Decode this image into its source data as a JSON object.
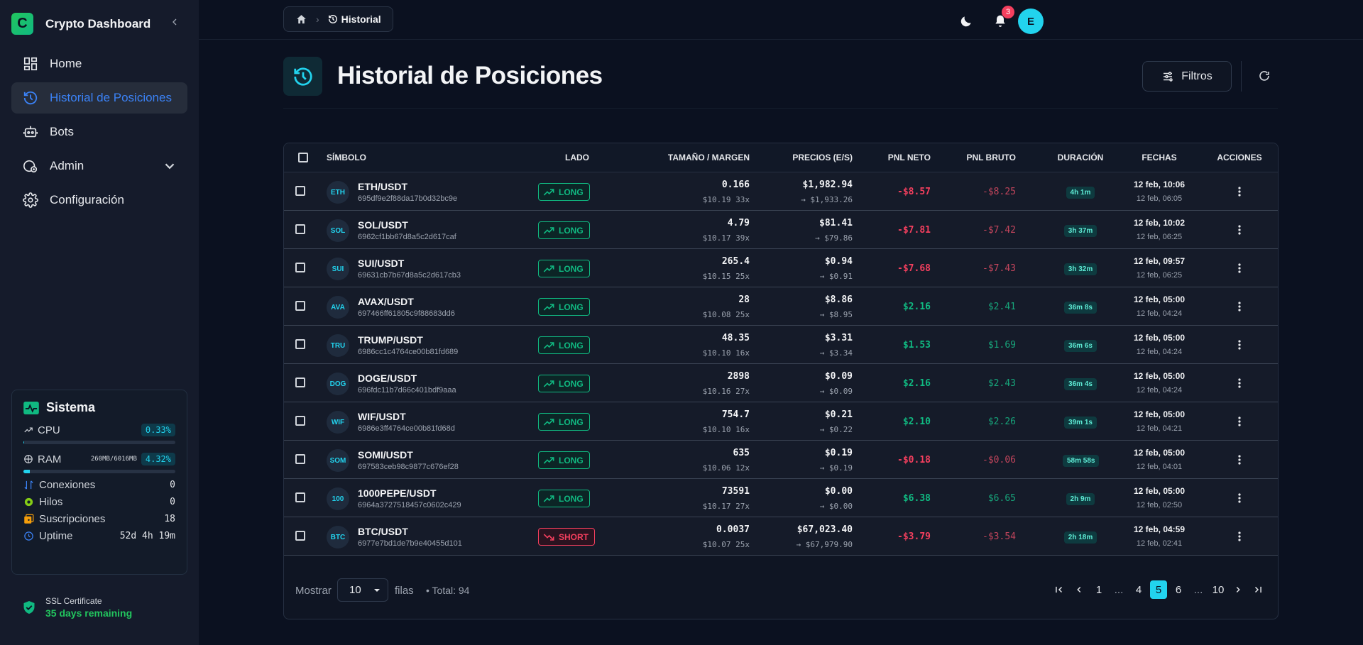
{
  "app": {
    "title": "Crypto Dashboard",
    "logo_letter": "C"
  },
  "sidebar": {
    "items": [
      {
        "label": "Home",
        "icon": "grid-icon"
      },
      {
        "label": "Historial de Posiciones",
        "icon": "history-icon",
        "active": true
      },
      {
        "label": "Bots",
        "icon": "robot-icon"
      },
      {
        "label": "Admin",
        "icon": "admin-icon",
        "expandable": true
      },
      {
        "label": "Configuración",
        "icon": "gear-icon"
      }
    ]
  },
  "system": {
    "title": "Sistema",
    "cpu": {
      "label": "CPU",
      "value": "0.33%",
      "fraction": 0.0033
    },
    "ram": {
      "label": "RAM",
      "detail": "260MB/6016MB",
      "value": "4.32%",
      "fraction": 0.0432
    },
    "stats": [
      {
        "label": "Conexiones",
        "value": "0"
      },
      {
        "label": "Hilos",
        "value": "0"
      },
      {
        "label": "Suscripciones",
        "value": "18"
      },
      {
        "label": "Uptime",
        "value": "52d 4h 19m"
      }
    ]
  },
  "ssl": {
    "title": "SSL Certificate",
    "status": "35 days remaining"
  },
  "breadcrumb": {
    "current": "Historial"
  },
  "notifications": {
    "count": "3"
  },
  "user": {
    "initial": "E"
  },
  "page": {
    "title": "Historial de Posiciones",
    "filters_label": "Filtros"
  },
  "table": {
    "headers": {
      "symbol": "SÍMBOLO",
      "side": "LADO",
      "size": "TAMAÑO / MARGEN",
      "prices": "PRECIOS (E/S)",
      "pnl_net": "PNL NETO",
      "pnl_gross": "PNL BRUTO",
      "duration": "DURACIÓN",
      "dates": "FECHAS",
      "actions": "ACCIONES"
    },
    "rows": [
      {
        "badge": "ETH",
        "symbol": "ETH/USDT",
        "id": "695df9e2f88da17b0d32bc9e",
        "side": "LONG",
        "size": "0.166",
        "margin": "$10.19 33x",
        "entry": "$1,982.94",
        "exit": "→ $1,933.26",
        "pnl_net": "-$8.57",
        "pnl_gross": "-$8.25",
        "duration": "4h 1m",
        "date_close": "12 feb, 10:06",
        "date_open": "12 feb, 06:05"
      },
      {
        "badge": "SOL",
        "symbol": "SOL/USDT",
        "id": "6962cf1bb67d8a5c2d617caf",
        "side": "LONG",
        "size": "4.79",
        "margin": "$10.17 39x",
        "entry": "$81.41",
        "exit": "→ $79.86",
        "pnl_net": "-$7.81",
        "pnl_gross": "-$7.42",
        "duration": "3h 37m",
        "date_close": "12 feb, 10:02",
        "date_open": "12 feb, 06:25"
      },
      {
        "badge": "SUI",
        "symbol": "SUI/USDT",
        "id": "69631cb7b67d8a5c2d617cb3",
        "side": "LONG",
        "size": "265.4",
        "margin": "$10.15 25x",
        "entry": "$0.94",
        "exit": "→ $0.91",
        "pnl_net": "-$7.68",
        "pnl_gross": "-$7.43",
        "duration": "3h 32m",
        "date_close": "12 feb, 09:57",
        "date_open": "12 feb, 06:25"
      },
      {
        "badge": "AVA",
        "symbol": "AVAX/USDT",
        "id": "697466ff61805c9f88683dd6",
        "side": "LONG",
        "size": "28",
        "margin": "$10.08 25x",
        "entry": "$8.86",
        "exit": "→ $8.95",
        "pnl_net": "$2.16",
        "pnl_gross": "$2.41",
        "duration": "36m 8s",
        "date_close": "12 feb, 05:00",
        "date_open": "12 feb, 04:24"
      },
      {
        "badge": "TRU",
        "symbol": "TRUMP/USDT",
        "id": "6986cc1c4764ce00b81fd689",
        "side": "LONG",
        "size": "48.35",
        "margin": "$10.10 16x",
        "entry": "$3.31",
        "exit": "→ $3.34",
        "pnl_net": "$1.53",
        "pnl_gross": "$1.69",
        "duration": "36m 6s",
        "date_close": "12 feb, 05:00",
        "date_open": "12 feb, 04:24"
      },
      {
        "badge": "DOG",
        "symbol": "DOGE/USDT",
        "id": "696fdc11b7d66c401bdf9aaa",
        "side": "LONG",
        "size": "2898",
        "margin": "$10.16 27x",
        "entry": "$0.09",
        "exit": "→ $0.09",
        "pnl_net": "$2.16",
        "pnl_gross": "$2.43",
        "duration": "36m 4s",
        "date_close": "12 feb, 05:00",
        "date_open": "12 feb, 04:24"
      },
      {
        "badge": "WIF",
        "symbol": "WIF/USDT",
        "id": "6986e3ff4764ce00b81fd68d",
        "side": "LONG",
        "size": "754.7",
        "margin": "$10.10 16x",
        "entry": "$0.21",
        "exit": "→ $0.22",
        "pnl_net": "$2.10",
        "pnl_gross": "$2.26",
        "duration": "39m 1s",
        "date_close": "12 feb, 05:00",
        "date_open": "12 feb, 04:21"
      },
      {
        "badge": "SOM",
        "symbol": "SOMI/USDT",
        "id": "697583ceb98c9877c676ef28",
        "side": "LONG",
        "size": "635",
        "margin": "$10.06 12x",
        "entry": "$0.19",
        "exit": "→ $0.19",
        "pnl_net": "-$0.18",
        "pnl_gross": "-$0.06",
        "duration": "58m 58s",
        "date_close": "12 feb, 05:00",
        "date_open": "12 feb, 04:01"
      },
      {
        "badge": "100",
        "symbol": "1000PEPE/USDT",
        "id": "6964a3727518457c0602c429",
        "side": "LONG",
        "size": "73591",
        "margin": "$10.17 27x",
        "entry": "$0.00",
        "exit": "→ $0.00",
        "pnl_net": "$6.38",
        "pnl_gross": "$6.65",
        "duration": "2h 9m",
        "date_close": "12 feb, 05:00",
        "date_open": "12 feb, 02:50"
      },
      {
        "badge": "BTC",
        "symbol": "BTC/USDT",
        "id": "6977e7bd1de7b9e40455d101",
        "side": "SHORT",
        "size": "0.0037",
        "margin": "$10.07 25x",
        "entry": "$67,023.40",
        "exit": "→ $67,979.90",
        "pnl_net": "-$3.79",
        "pnl_gross": "-$3.54",
        "duration": "2h 18m",
        "date_close": "12 feb, 04:59",
        "date_open": "12 feb, 02:41"
      }
    ]
  },
  "footer": {
    "show_label": "Mostrar",
    "rows_value": "10",
    "rows_label": "filas",
    "total": "• Total: 94",
    "pages": [
      "1",
      "...",
      "4",
      "5",
      "6",
      "...",
      "10"
    ],
    "current_page": "5"
  },
  "colors": {
    "accent": "#22d3ee",
    "positive": "#10b981",
    "negative": "#f43f5e",
    "active_nav": "#3b82f6"
  }
}
